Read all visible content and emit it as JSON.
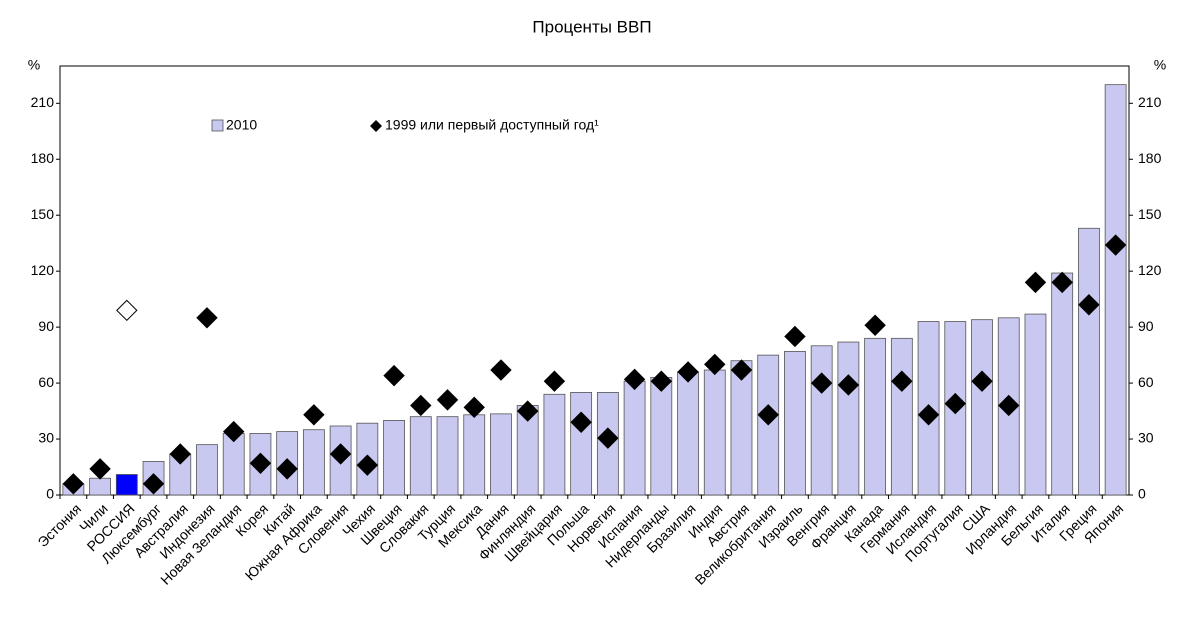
{
  "chart_data": {
    "type": "bar",
    "title": "Проценты ВВП",
    "y_unit_left": "%",
    "y_unit_right": "%",
    "categories": [
      "Эстония",
      "Чили",
      "РОССИЯ",
      "Люксембург",
      "Австралия",
      "Индонезия",
      "Новая Зеландия",
      "Корея",
      "Китай",
      "Южная Африка",
      "Словения",
      "Чехия",
      "Швеция",
      "Словакия",
      "Турция",
      "Мексика",
      "Дания",
      "Финляндия",
      "Швейцария",
      "Польша",
      "Норвегия",
      "Испания",
      "Нидерланды",
      "Бразилия",
      "Индия",
      "Австрия",
      "Великобритания",
      "Израиль",
      "Венгрия",
      "Франция",
      "Канада",
      "Германия",
      "Исландия",
      "Португалия",
      "США",
      "Ирландия",
      "Бельгия",
      "Италия",
      "Греция",
      "Япония"
    ],
    "series": [
      {
        "name": "2010",
        "color": "#c8c8f0",
        "colors": [
          "#c8c8f0",
          "#c8c8f0",
          "#0000ff",
          "#c8c8f0",
          "#c8c8f0",
          "#c8c8f0",
          "#c8c8f0",
          "#c8c8f0",
          "#c8c8f0",
          "#c8c8f0",
          "#c8c8f0",
          "#c8c8f0",
          "#c8c8f0",
          "#c8c8f0",
          "#c8c8f0",
          "#c8c8f0",
          "#c8c8f0",
          "#c8c8f0",
          "#c8c8f0",
          "#c8c8f0",
          "#c8c8f0",
          "#c8c8f0",
          "#c8c8f0",
          "#c8c8f0",
          "#c8c8f0",
          "#c8c8f0",
          "#c8c8f0",
          "#c8c8f0",
          "#c8c8f0",
          "#c8c8f0",
          "#c8c8f0",
          "#c8c8f0",
          "#c8c8f0",
          "#c8c8f0",
          "#c8c8f0",
          "#c8c8f0",
          "#c8c8f0",
          "#c8c8f0",
          "#c8c8f0",
          "#c8c8f0"
        ],
        "values": [
          6,
          9,
          11,
          18,
          22,
          27,
          33,
          33,
          34,
          35,
          37,
          38.5,
          40,
          42,
          42,
          43,
          43.5,
          48,
          54,
          55,
          55,
          61,
          63,
          66,
          67,
          72,
          75,
          77,
          80,
          82,
          84,
          84,
          93,
          93,
          94,
          95,
          97,
          119,
          143,
          220
        ]
      },
      {
        "name": "1999 или первый доступный год¹",
        "marker": "diamond",
        "color": "#000000",
        "colors": [
          "#000000",
          "#000000",
          "#ffffff",
          "#000000",
          "#000000",
          "#000000",
          "#000000",
          "#000000",
          "#000000",
          "#000000",
          "#000000",
          "#000000",
          "#000000",
          "#000000",
          "#000000",
          "#000000",
          "#000000",
          "#000000",
          "#000000",
          "#000000",
          "#000000",
          "#000000",
          "#000000",
          "#000000",
          "#000000",
          "#000000",
          "#000000",
          "#000000",
          "#000000",
          "#000000",
          "#000000",
          "#000000",
          "#000000",
          "#000000",
          "#000000",
          "#000000",
          "#000000",
          "#000000",
          "#000000",
          "#000000"
        ],
        "values": [
          6,
          14,
          99,
          6,
          22,
          95,
          34,
          17,
          14,
          43,
          22,
          16,
          64,
          48,
          51,
          47,
          67,
          45,
          61,
          39,
          30.5,
          62,
          61,
          66,
          70,
          67,
          43,
          85,
          60,
          59,
          91,
          61,
          43,
          49,
          61,
          48,
          114,
          114,
          102,
          134
        ]
      }
    ],
    "ylim": [
      0,
      230
    ],
    "yticks": [
      0,
      30,
      60,
      90,
      120,
      150,
      180,
      210
    ],
    "grid": false
  }
}
